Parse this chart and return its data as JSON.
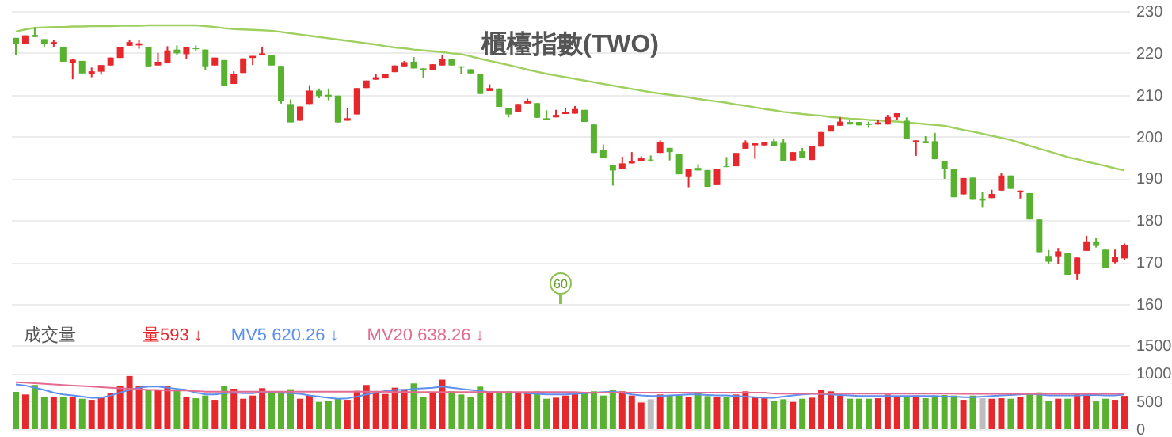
{
  "chart_data": [
    {
      "type": "candlestick",
      "title": "櫃檯指數(TWO)",
      "categories": [
        null,
        null,
        null,
        null,
        null,
        null,
        null,
        null,
        null,
        null,
        null,
        null,
        null,
        null,
        null,
        null,
        null,
        null,
        null,
        null,
        null,
        null,
        null,
        null,
        null,
        null,
        null,
        null,
        null,
        null,
        null,
        null,
        null,
        null,
        null,
        null,
        null,
        null,
        null,
        null,
        null,
        null,
        null,
        null,
        null,
        null,
        null,
        null,
        null,
        null,
        null,
        null,
        null,
        null,
        null,
        null,
        null,
        null,
        null,
        null,
        null,
        null,
        null,
        null,
        null,
        null,
        null,
        null,
        null,
        null,
        null,
        null,
        null,
        null,
        null,
        null,
        null,
        null,
        null,
        null,
        null,
        null,
        null,
        null,
        null,
        null,
        null,
        null,
        null,
        null,
        null,
        null,
        null,
        null,
        null,
        null,
        null,
        null,
        null,
        null,
        null,
        null,
        null,
        null,
        null,
        null,
        null,
        null,
        null,
        null,
        null,
        null,
        null,
        null,
        null,
        null,
        null,
        null
      ],
      "ohlc": [
        [
          223.6,
          223.6,
          219.4,
          222.1
        ],
        [
          222.1,
          224.2,
          222.1,
          224.2
        ],
        [
          224.3,
          226.1,
          223.8,
          223.8
        ],
        [
          223.3,
          223.3,
          221.5,
          222.1
        ],
        [
          222.1,
          223.1,
          221.5,
          222.6
        ],
        [
          221.5,
          221.5,
          217.9,
          217.9
        ],
        [
          217.6,
          218.6,
          213.7,
          218.4
        ],
        [
          218.1,
          218.1,
          215.1,
          215.1
        ],
        [
          215.0,
          216.5,
          214.2,
          215.6
        ],
        [
          215.5,
          217.1,
          214.8,
          217.1
        ],
        [
          217.0,
          218.9,
          217.0,
          218.9
        ],
        [
          218.8,
          221.3,
          218.8,
          221.3
        ],
        [
          221.7,
          223.2,
          221.7,
          222.6
        ],
        [
          221.8,
          223.1,
          221.0,
          222.3
        ],
        [
          221.4,
          221.4,
          216.8,
          216.8
        ],
        [
          217.0,
          220.0,
          217.0,
          217.9
        ],
        [
          217.5,
          221.6,
          217.5,
          220.6
        ],
        [
          220.8,
          221.8,
          219.5,
          219.9
        ],
        [
          219.7,
          221.3,
          218.5,
          221.3
        ],
        [
          221.1,
          221.8,
          220.5,
          220.9
        ],
        [
          220.8,
          220.8,
          215.9,
          216.8
        ],
        [
          217.0,
          218.9,
          217.0,
          218.9
        ],
        [
          218.3,
          218.3,
          212.1,
          212.1
        ],
        [
          212.6,
          215.6,
          212.6,
          214.9
        ],
        [
          215.2,
          218.7,
          215.2,
          218.7
        ],
        [
          218.8,
          219.3,
          217.1,
          219.3
        ],
        [
          219.4,
          221.5,
          219.4,
          219.9
        ],
        [
          219.4,
          219.4,
          217.0,
          217.0
        ],
        [
          216.9,
          216.9,
          207.9,
          208.6
        ],
        [
          207.8,
          208.9,
          203.4,
          203.4
        ],
        [
          203.8,
          207.2,
          203.8,
          207.2
        ],
        [
          207.8,
          212.3,
          207.8,
          211.0
        ],
        [
          211.0,
          211.5,
          209.2,
          209.7
        ],
        [
          210.0,
          211.5,
          208.7,
          209.6
        ],
        [
          209.8,
          209.8,
          203.4,
          203.4
        ],
        [
          203.8,
          206.8,
          203.8,
          204.4
        ],
        [
          205.3,
          211.6,
          205.3,
          211.6
        ],
        [
          211.6,
          213.4,
          211.6,
          213.4
        ],
        [
          213.6,
          214.9,
          213.6,
          214.2
        ],
        [
          213.9,
          214.9,
          213.9,
          214.9
        ],
        [
          215.4,
          217.0,
          215.4,
          217.0
        ],
        [
          216.8,
          218.1,
          216.8,
          217.8
        ],
        [
          217.9,
          219.0,
          216.3,
          216.3
        ],
        [
          216.3,
          216.3,
          214.1,
          215.9
        ],
        [
          215.9,
          217.3,
          215.9,
          217.3
        ],
        [
          217.0,
          219.6,
          217.0,
          218.5
        ],
        [
          218.5,
          218.5,
          217.0,
          217.0
        ],
        [
          216.8,
          216.8,
          215.0,
          216.5
        ],
        [
          216.1,
          216.1,
          215.0,
          215.1
        ],
        [
          215.0,
          215.0,
          210.2,
          210.2
        ],
        [
          210.9,
          212.5,
          210.9,
          211.6
        ],
        [
          211.5,
          211.5,
          207.1,
          207.1
        ],
        [
          206.9,
          206.9,
          204.6,
          205.3
        ],
        [
          205.8,
          207.8,
          205.8,
          207.8
        ],
        [
          207.9,
          209.1,
          207.9,
          208.6
        ],
        [
          208.0,
          208.0,
          204.5,
          204.5
        ],
        [
          204.4,
          206.3,
          204.0,
          204.0
        ],
        [
          204.6,
          206.4,
          204.6,
          205.2
        ],
        [
          205.4,
          206.8,
          205.4,
          205.9
        ],
        [
          205.5,
          207.3,
          205.5,
          206.6
        ],
        [
          206.4,
          206.4,
          203.5,
          203.5
        ],
        [
          202.9,
          202.9,
          196.1,
          196.1
        ],
        [
          196.8,
          198.1,
          194.8,
          194.8
        ],
        [
          193.2,
          193.2,
          188.3,
          191.9
        ],
        [
          192.3,
          195.2,
          192.3,
          193.6
        ],
        [
          193.6,
          196.3,
          193.6,
          194.2
        ],
        [
          194.2,
          195.3,
          194.2,
          194.8
        ],
        [
          194.5,
          195.5,
          194.0,
          194.3
        ],
        [
          196.1,
          199.1,
          196.1,
          198.6
        ],
        [
          197.3,
          197.3,
          194.3,
          196.3
        ],
        [
          195.9,
          195.9,
          191.0,
          191.0
        ],
        [
          190.5,
          192.3,
          187.9,
          192.3
        ],
        [
          192.5,
          193.4,
          191.9,
          191.9
        ],
        [
          192.0,
          192.0,
          188.0,
          188.0
        ],
        [
          188.4,
          192.3,
          188.4,
          192.3
        ],
        [
          192.9,
          195.1,
          192.7,
          192.7
        ],
        [
          192.9,
          196.1,
          192.9,
          196.1
        ],
        [
          197.1,
          199.1,
          197.1,
          198.5
        ],
        [
          197.9,
          198.4,
          194.7,
          198.4
        ],
        [
          197.9,
          198.6,
          197.9,
          198.6
        ],
        [
          198.9,
          199.6,
          197.7,
          197.7
        ],
        [
          198.5,
          199.4,
          194.1,
          194.1
        ],
        [
          194.3,
          196.3,
          194.3,
          196.3
        ],
        [
          196.5,
          197.3,
          194.8,
          194.8
        ],
        [
          194.4,
          197.7,
          194.4,
          197.7
        ],
        [
          197.6,
          201.1,
          197.6,
          201.1
        ],
        [
          201.2,
          202.7,
          201.2,
          202.7
        ],
        [
          202.6,
          204.6,
          202.6,
          203.6
        ],
        [
          203.5,
          204.0,
          202.9,
          202.9
        ],
        [
          203.5,
          203.5,
          202.7,
          202.7
        ],
        [
          203.0,
          203.6,
          202.1,
          202.8
        ],
        [
          202.9,
          203.9,
          202.9,
          203.4
        ],
        [
          202.9,
          205.2,
          202.9,
          204.7
        ],
        [
          204.6,
          205.6,
          204.0,
          205.6
        ],
        [
          203.8,
          204.6,
          199.4,
          199.4
        ],
        [
          198.6,
          199.1,
          195.4,
          199.1
        ],
        [
          198.9,
          200.1,
          198.4,
          198.4
        ],
        [
          198.9,
          200.9,
          194.6,
          194.6
        ],
        [
          194.1,
          194.1,
          189.9,
          192.3
        ],
        [
          192.2,
          192.2,
          185.5,
          185.5
        ],
        [
          186.2,
          190.1,
          186.2,
          190.1
        ],
        [
          190.2,
          190.2,
          184.9,
          184.9
        ],
        [
          185.2,
          186.7,
          183.0,
          184.7
        ],
        [
          185.3,
          187.3,
          185.3,
          186.3
        ],
        [
          187.1,
          191.4,
          187.1,
          190.7
        ],
        [
          190.7,
          190.7,
          187.5,
          187.5
        ],
        [
          186.8,
          187.1,
          185.2,
          187.1
        ],
        [
          186.5,
          186.5,
          180.2,
          180.2
        ],
        [
          180.2,
          180.2,
          172.4,
          172.4
        ],
        [
          171.5,
          172.9,
          169.6,
          170.1
        ],
        [
          171.4,
          173.4,
          169.5,
          172.6
        ],
        [
          172.3,
          172.3,
          167.0,
          167.0
        ],
        [
          167.2,
          171.1,
          165.7,
          171.1
        ],
        [
          172.7,
          176.3,
          172.7,
          174.8
        ],
        [
          174.8,
          175.7,
          173.5,
          173.9
        ],
        [
          173.0,
          173.0,
          168.6,
          168.6
        ],
        [
          170.0,
          173.0,
          169.7,
          171.2
        ],
        [
          170.9,
          174.5,
          170.5,
          174.0
        ]
      ],
      "colors": [
        "#58b22f",
        "#e6282d",
        "#58b22f",
        "#58b22f",
        "#e6282d",
        "#58b22f",
        "#e6282d",
        "#58b22f",
        "#e6282d",
        "#e6282d",
        "#e6282d",
        "#e6282d",
        "#e6282d",
        "#e6282d",
        "#58b22f",
        "#e6282d",
        "#e6282d",
        "#58b22f",
        "#e6282d",
        "#58b22f",
        "#58b22f",
        "#e6282d",
        "#58b22f",
        "#e6282d",
        "#e6282d",
        "#e6282d",
        "#e6282d",
        "#58b22f",
        "#58b22f",
        "#58b22f",
        "#e6282d",
        "#e6282d",
        "#58b22f",
        "#58b22f",
        "#58b22f",
        "#e6282d",
        "#e6282d",
        "#e6282d",
        "#e6282d",
        "#e6282d",
        "#e6282d",
        "#e6282d",
        "#58b22f",
        "#58b22f",
        "#e6282d",
        "#e6282d",
        "#58b22f",
        "#58b22f",
        "#58b22f",
        "#58b22f",
        "#e6282d",
        "#58b22f",
        "#58b22f",
        "#e6282d",
        "#e6282d",
        "#58b22f",
        "#58b22f",
        "#e6282d",
        "#e6282d",
        "#e6282d",
        "#58b22f",
        "#58b22f",
        "#58b22f",
        "#58b22f",
        "#e6282d",
        "#e6282d",
        "#e6282d",
        "#58b22f",
        "#e6282d",
        "#58b22f",
        "#58b22f",
        "#e6282d",
        "#58b22f",
        "#58b22f",
        "#e6282d",
        "#58b22f",
        "#e6282d",
        "#e6282d",
        "#e6282d",
        "#e6282d",
        "#58b22f",
        "#58b22f",
        "#e6282d",
        "#58b22f",
        "#e6282d",
        "#e6282d",
        "#e6282d",
        "#e6282d",
        "#58b22f",
        "#58b22f",
        "#58b22f",
        "#e6282d",
        "#e6282d",
        "#e6282d",
        "#58b22f",
        "#e6282d",
        "#58b22f",
        "#58b22f",
        "#58b22f",
        "#58b22f",
        "#e6282d",
        "#58b22f",
        "#58b22f",
        "#e6282d",
        "#e6282d",
        "#58b22f",
        "#e6282d",
        "#58b22f",
        "#58b22f",
        "#58b22f",
        "#e6282d",
        "#58b22f",
        "#e6282d",
        "#e6282d",
        "#58b22f",
        "#58b22f",
        "#e6282d",
        "#e6282d"
      ],
      "series": [
        {
          "type": "line",
          "color": "#9fd05f",
          "values": [
            225.1,
            225.6,
            226.0,
            226.1,
            226.2,
            226.2,
            226.3,
            226.3,
            226.4,
            226.4,
            226.4,
            226.5,
            226.5,
            226.5,
            226.6,
            226.6,
            226.6,
            226.6,
            226.6,
            226.6,
            226.4,
            226.2,
            225.9,
            225.7,
            225.6,
            225.5,
            225.4,
            225.3,
            225.0,
            224.7,
            224.4,
            224.1,
            223.8,
            223.5,
            223.2,
            222.9,
            222.6,
            222.3,
            222.0,
            221.6,
            221.3,
            221.1,
            220.8,
            220.6,
            220.4,
            220.2,
            219.9,
            219.7,
            219.2,
            218.6,
            218.1,
            217.6,
            217.1,
            216.6,
            216.0,
            215.5,
            215.0,
            214.6,
            214.2,
            213.8,
            213.4,
            213.0,
            212.6,
            212.2,
            211.8,
            211.4,
            211.0,
            210.6,
            210.3,
            210.0,
            209.7,
            209.4,
            209.0,
            208.7,
            208.4,
            208.1,
            207.7,
            207.4,
            207.0,
            206.6,
            206.3,
            205.9,
            205.7,
            205.4,
            205.2,
            205.0,
            204.7,
            204.5,
            204.3,
            204.2,
            204.0,
            203.9,
            203.7,
            203.6,
            203.4,
            203.2,
            203.0,
            202.8,
            202.6,
            202.1,
            201.6,
            201.2,
            200.7,
            200.2,
            199.7,
            199.2,
            198.5,
            197.8,
            197.1,
            196.5,
            195.8,
            195.1,
            194.6,
            194.0,
            193.5,
            193.0,
            192.4,
            191.9
          ]
        }
      ],
      "ylim": [
        160,
        230
      ],
      "yticks": [
        160,
        170,
        180,
        190,
        200,
        210,
        220,
        230
      ],
      "grid": "y",
      "tick_labels": "y",
      "annotations": [
        "60"
      ]
    },
    {
      "type": "bar",
      "legend_title": "成交量",
      "categories": [
        null,
        null,
        null,
        null,
        null,
        null,
        null,
        null,
        null,
        null,
        null,
        null,
        null,
        null,
        null,
        null,
        null,
        null,
        null,
        null,
        null,
        null,
        null,
        null,
        null,
        null,
        null,
        null,
        null,
        null,
        null,
        null,
        null,
        null,
        null,
        null,
        null,
        null,
        null,
        null,
        null,
        null,
        null,
        null,
        null,
        null,
        null,
        null,
        null,
        null,
        null,
        null,
        null,
        null,
        null,
        null,
        null,
        null,
        null,
        null,
        null,
        null,
        null,
        null,
        null,
        null,
        null,
        null,
        null,
        null,
        null,
        null,
        null,
        null,
        null,
        null,
        null,
        null,
        null,
        null,
        null,
        null,
        null,
        null,
        null,
        null,
        null,
        null,
        null,
        null,
        null,
        null,
        null,
        null,
        null,
        null,
        null,
        null,
        null,
        null,
        null,
        null,
        null,
        null,
        null,
        null,
        null,
        null,
        null,
        null,
        null,
        null,
        null,
        null,
        null,
        null,
        null,
        null
      ],
      "series": [
        {
          "name": "量593 ↓",
          "colors": [
            "#58b22f",
            "#e6282d",
            "#58b22f",
            "#58b22f",
            "#e6282d",
            "#58b22f",
            "#e6282d",
            "#58b22f",
            "#e6282d",
            "#e6282d",
            "#e6282d",
            "#e6282d",
            "#e6282d",
            "#e6282d",
            "#58b22f",
            "#e6282d",
            "#e6282d",
            "#58b22f",
            "#e6282d",
            "#58b22f",
            "#58b22f",
            "#e6282d",
            "#58b22f",
            "#e6282d",
            "#e6282d",
            "#e6282d",
            "#e6282d",
            "#58b22f",
            "#58b22f",
            "#58b22f",
            "#e6282d",
            "#e6282d",
            "#58b22f",
            "#58b22f",
            "#58b22f",
            "#e6282d",
            "#e6282d",
            "#e6282d",
            "#e6282d",
            "#e6282d",
            "#e6282d",
            "#e6282d",
            "#58b22f",
            "#58b22f",
            "#e6282d",
            "#e6282d",
            "#58b22f",
            "#58b22f",
            "#58b22f",
            "#58b22f",
            "#e6282d",
            "#58b22f",
            "#58b22f",
            "#e6282d",
            "#e6282d",
            "#58b22f",
            "#58b22f",
            "#e6282d",
            "#e6282d",
            "#e6282d",
            "#58b22f",
            "#58b22f",
            "#58b22f",
            "#58b22f",
            "#e6282d",
            "#e6282d",
            "#e6282d",
            "#bdbdbd",
            "#e6282d",
            "#58b22f",
            "#58b22f",
            "#e6282d",
            "#58b22f",
            "#58b22f",
            "#e6282d",
            "#58b22f",
            "#e6282d",
            "#e6282d",
            "#e6282d",
            "#e6282d",
            "#58b22f",
            "#58b22f",
            "#e6282d",
            "#58b22f",
            "#e6282d",
            "#e6282d",
            "#e6282d",
            "#e6282d",
            "#58b22f",
            "#58b22f",
            "#58b22f",
            "#e6282d",
            "#e6282d",
            "#e6282d",
            "#58b22f",
            "#e6282d",
            "#58b22f",
            "#58b22f",
            "#58b22f",
            "#58b22f",
            "#e6282d",
            "#58b22f",
            "#bdbdbd",
            "#e6282d",
            "#e6282d",
            "#58b22f",
            "#e6282d",
            "#58b22f",
            "#58b22f",
            "#58b22f",
            "#e6282d",
            "#58b22f",
            "#e6282d",
            "#e6282d",
            "#58b22f",
            "#58b22f",
            "#e6282d",
            "#e6282d"
          ],
          "values": [
            665,
            618,
            789,
            580,
            570,
            580,
            580,
            542,
            523,
            580,
            646,
            770,
            950,
            770,
            694,
            694,
            770,
            694,
            570,
            551,
            599,
            523,
            770,
            722,
            542,
            599,
            732,
            675,
            675,
            713,
            542,
            599,
            485,
            504,
            551,
            523,
            684,
            789,
            656,
            627,
            741,
            713,
            817,
            580,
            656,
            884,
            675,
            618,
            570,
            760,
            637,
            646,
            675,
            637,
            637,
            675,
            542,
            561,
            599,
            656,
            637,
            675,
            599,
            694,
            675,
            599,
            475,
            532,
            618,
            599,
            599,
            580,
            665,
            589,
            580,
            580,
            618,
            675,
            570,
            570,
            504,
            532,
            485,
            542,
            561,
            694,
            675,
            599,
            542,
            542,
            542,
            551,
            618,
            589,
            580,
            599,
            551,
            599,
            608,
            599,
            523,
            599,
            551,
            542,
            551,
            542,
            570,
            646,
            656,
            504,
            542,
            542,
            646,
            618,
            494,
            542,
            523,
            593
          ]
        },
        {
          "name": "MV5 620.26 ↓",
          "type": "line",
          "color": "#5b8ff0",
          "values": [
            800,
            780,
            740,
            700,
            650,
            620,
            600,
            580,
            560,
            560,
            600,
            650,
            700,
            740,
            760,
            760,
            740,
            720,
            700,
            650,
            620,
            620,
            640,
            650,
            640,
            640,
            660,
            660,
            650,
            640,
            630,
            600,
            580,
            560,
            540,
            550,
            580,
            620,
            650,
            680,
            700,
            700,
            720,
            730,
            740,
            760,
            740,
            720,
            700,
            680,
            660,
            660,
            650,
            650,
            640,
            630,
            620,
            620,
            620,
            630,
            640,
            650,
            660,
            670,
            650,
            620,
            600,
            590,
            590,
            600,
            610,
            620,
            620,
            610,
            600,
            600,
            590,
            580,
            570,
            560,
            560,
            580,
            600,
            620,
            630,
            630,
            620,
            610,
            600,
            590,
            590,
            590,
            590,
            590,
            590,
            590,
            590,
            590,
            580,
            580,
            570,
            570,
            580,
            590,
            600,
            610,
            620,
            630,
            620,
            600,
            600,
            600,
            600,
            610,
            610,
            600,
            600,
            620.26
          ]
        },
        {
          "name": "MV20 638.26 ↓",
          "type": "line",
          "color": "#e46a8f",
          "values": [
            840,
            830,
            820,
            810,
            800,
            790,
            780,
            770,
            760,
            750,
            740,
            730,
            720,
            710,
            700,
            700,
            690,
            690,
            690,
            680,
            670,
            670,
            670,
            670,
            670,
            670,
            670,
            670,
            670,
            670,
            670,
            670,
            670,
            670,
            670,
            670,
            670,
            670,
            670,
            670,
            660,
            660,
            660,
            660,
            660,
            660,
            660,
            660,
            660,
            660,
            660,
            660,
            660,
            660,
            660,
            660,
            660,
            660,
            660,
            660,
            650,
            650,
            650,
            650,
            650,
            650,
            650,
            650,
            650,
            650,
            650,
            650,
            650,
            650,
            650,
            650,
            650,
            650,
            650,
            650,
            635,
            635,
            635,
            635,
            635,
            635,
            635,
            635,
            635,
            635,
            635,
            635,
            635,
            635,
            635,
            635,
            635,
            635,
            635,
            635,
            630,
            630,
            630,
            630,
            630,
            630,
            630,
            630,
            630,
            630,
            630,
            630,
            630,
            630,
            630,
            630,
            630,
            638.26
          ]
        }
      ],
      "ylim": [
        0,
        1500
      ],
      "yticks": [
        0,
        500,
        1000,
        1500
      ],
      "grid": "y",
      "tick_labels": "y"
    }
  ]
}
